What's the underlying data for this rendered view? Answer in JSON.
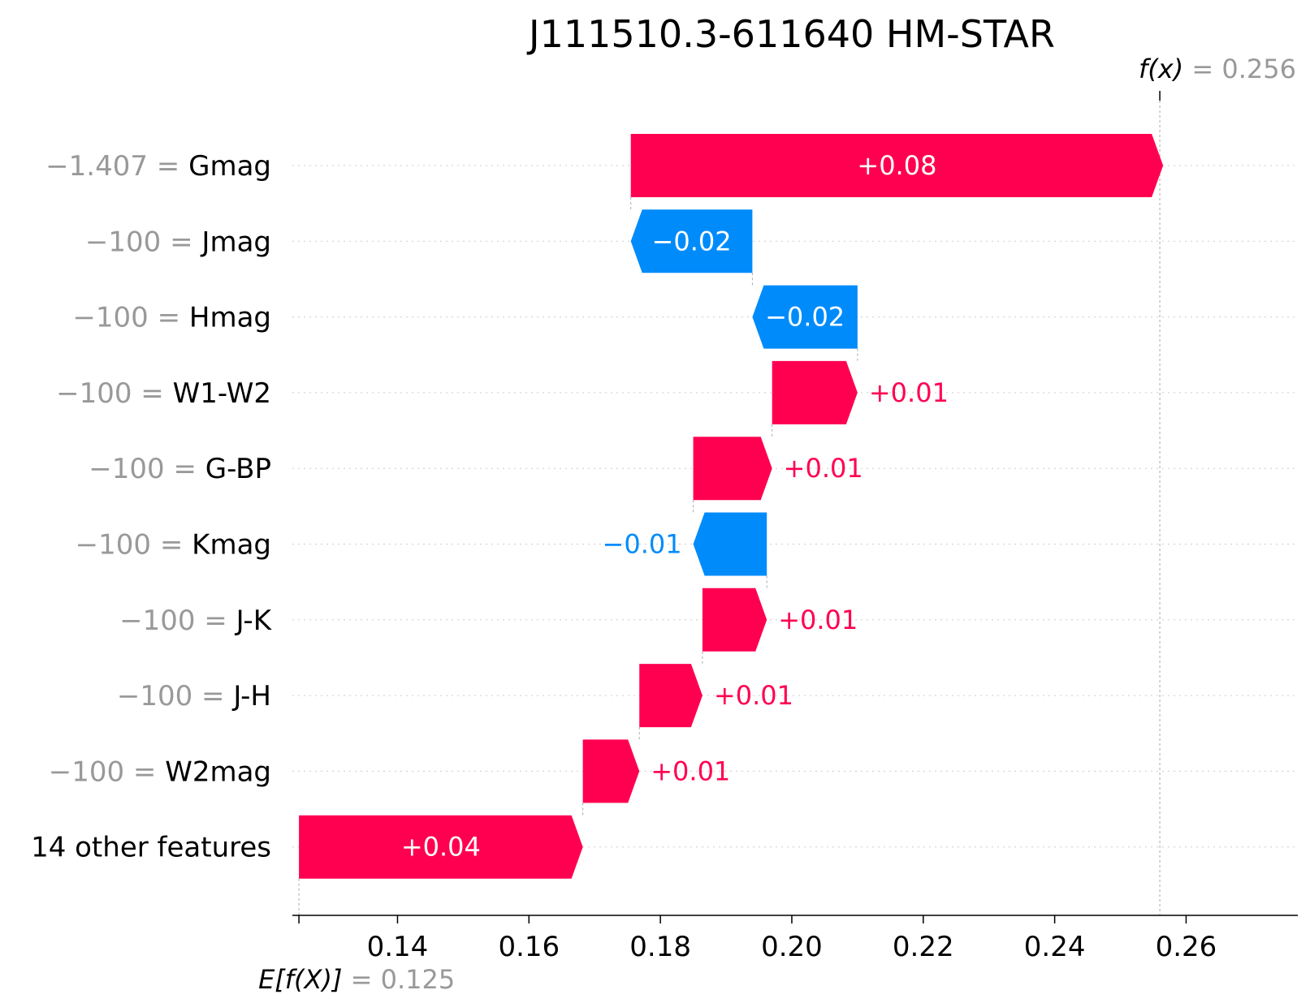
{
  "chart_data": {
    "type": "waterfall",
    "title": "J111510.3-611640 HM-STAR",
    "base_value": 0.125,
    "base_label_prefix": "E[f(X)]",
    "output_value": 0.256,
    "output_label_prefix": "f(x)",
    "xlim": [
      0.124,
      0.277
    ],
    "xticks": [
      0.14,
      0.16,
      0.18,
      0.2,
      0.22,
      0.24,
      0.26
    ],
    "xtick_labels": [
      "0.14",
      "0.16",
      "0.18",
      "0.20",
      "0.22",
      "0.24",
      "0.26"
    ],
    "grid": "horizontal-dotted",
    "colors": {
      "positive": "#ff0051",
      "negative": "#008bfb",
      "value_gray": "#999999",
      "text": "#000000"
    },
    "features": [
      {
        "value": "−1.407",
        "name": "Gmag",
        "start": 0.1755,
        "end": 0.2565,
        "label": "+0.08"
      },
      {
        "value": "−100",
        "name": "Jmag",
        "start": 0.194,
        "end": 0.1755,
        "label": "−0.02"
      },
      {
        "value": "−100",
        "name": "Hmag",
        "start": 0.21,
        "end": 0.194,
        "label": "−0.02"
      },
      {
        "value": "−100",
        "name": "W1-W2",
        "start": 0.197,
        "end": 0.21,
        "label": "+0.01"
      },
      {
        "value": "−100",
        "name": "G-BP",
        "start": 0.185,
        "end": 0.197,
        "label": "+0.01"
      },
      {
        "value": "−100",
        "name": "Kmag",
        "start": 0.1962,
        "end": 0.185,
        "label": "−0.01"
      },
      {
        "value": "−100",
        "name": "J-K",
        "start": 0.1864,
        "end": 0.1962,
        "label": "+0.01"
      },
      {
        "value": "−100",
        "name": "J-H",
        "start": 0.1768,
        "end": 0.1864,
        "label": "+0.01"
      },
      {
        "value": "−100",
        "name": "W2mag",
        "start": 0.1682,
        "end": 0.1768,
        "label": "+0.01"
      },
      {
        "value": "",
        "name": "14 other features",
        "start": 0.125,
        "end": 0.1682,
        "label": "+0.04"
      }
    ]
  }
}
